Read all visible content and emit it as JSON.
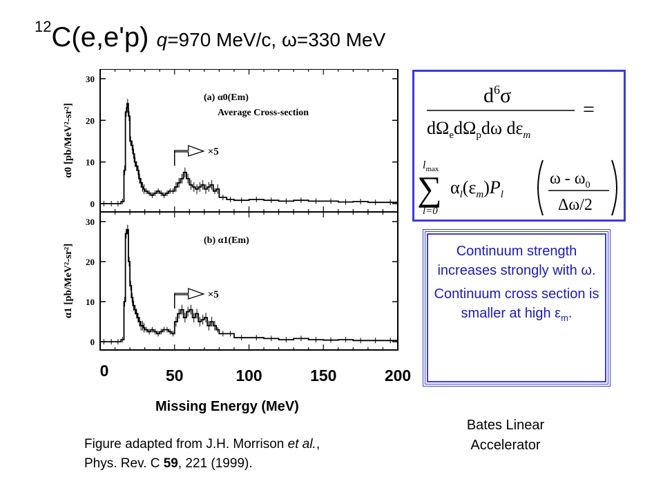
{
  "title": {
    "mass_number": "12",
    "reaction": "C(e,e'p)",
    "q_symbol": "q",
    "q_value": "=970 MeV/c, ",
    "omega_symbol": "ω",
    "omega_value": "=330 MeV"
  },
  "colors": {
    "box_border": "#3b3bd6",
    "box_text": "#1a1ab8"
  },
  "chart_data": {
    "type": "line",
    "xlabel": "Missing Energy (MeV)",
    "xlim": [
      0,
      200
    ],
    "x_ticks": [
      "0",
      "50",
      "100",
      "150",
      "200"
    ],
    "panels": [
      {
        "name": "a",
        "label": "(a)  α0(Em)",
        "sublabel": "Average Cross-section",
        "ylabel": "α0 [pb/MeV²-sr²]",
        "ylim": [
          0,
          30
        ],
        "y_ticks": [
          "0",
          "10",
          "20",
          "30"
        ],
        "scale_annotation": "×5",
        "scale_from_x": 50,
        "series": [
          {
            "x": [
              0,
              5,
              10,
              14,
              16,
              17,
              18,
              19,
              20,
              21,
              22,
              23,
              24,
              25,
              26,
              27,
              28,
              29,
              30,
              32,
              34,
              36,
              38,
              40,
              42,
              44,
              46,
              48,
              50,
              52,
              54,
              56,
              58,
              60,
              62,
              64,
              66,
              68,
              70,
              72,
              74,
              76,
              78,
              80,
              85,
              90,
              100,
              110,
              120,
              130,
              140,
              150,
              160,
              170,
              180,
              190,
              200
            ],
            "y": [
              0,
              0,
              0,
              0.5,
              8,
              22,
              24,
              21,
              15,
              14,
              12,
              10,
              9,
              8,
              6,
              5,
              4,
              3.5,
              3,
              2.5,
              2,
              2.5,
              3,
              2.5,
              2,
              2.5,
              3,
              3,
              4,
              5,
              6,
              7.5,
              6,
              4.5,
              4,
              3.5,
              4,
              4.5,
              3.5,
              4,
              4.5,
              3,
              3.5,
              1.5,
              1,
              0.8,
              1,
              0.8,
              0.6,
              0.8,
              0.6,
              0.6,
              0.4,
              0.5,
              0.3,
              0.3,
              0.3
            ]
          }
        ]
      },
      {
        "name": "b",
        "label": "(b)  α1(Em)",
        "ylabel": "α1 [pb/MeV²-sr²]",
        "ylim": [
          0,
          30
        ],
        "y_ticks": [
          "0",
          "10",
          "20",
          "30"
        ],
        "scale_annotation": "×5",
        "scale_from_x": 50,
        "series": [
          {
            "x": [
              0,
              5,
              10,
              14,
              16,
              17,
              18,
              19,
              20,
              21,
              22,
              23,
              24,
              25,
              26,
              27,
              28,
              29,
              30,
              32,
              34,
              36,
              38,
              40,
              42,
              44,
              46,
              48,
              50,
              52,
              54,
              56,
              58,
              60,
              62,
              64,
              66,
              68,
              70,
              72,
              74,
              76,
              78,
              80,
              85,
              90,
              100,
              110,
              120,
              130,
              140,
              150,
              160,
              170,
              180,
              190,
              200
            ],
            "y": [
              0,
              0,
              0,
              0.5,
              10,
              27,
              28,
              20,
              14,
              11,
              9,
              8,
              7,
              6,
              5,
              4,
              4,
              3.5,
              3,
              2.5,
              3,
              2.5,
              2,
              2.5,
              3,
              3,
              2.5,
              2,
              5,
              7,
              8,
              6,
              7.5,
              8,
              6,
              7,
              5,
              5.5,
              6,
              4,
              5,
              4,
              3,
              2,
              2,
              1,
              1,
              0.8,
              0.5,
              0.8,
              0.5,
              0.4,
              0.5,
              0.3,
              0.3,
              0.3,
              0.3
            ]
          }
        ]
      }
    ]
  },
  "formula": {
    "numerator_d": "d",
    "numerator_exp": "6",
    "numerator_sigma": "σ",
    "den_d1": "dΩ",
    "den_sub_e": "e",
    "den_d2": "dΩ",
    "den_sub_p": "p",
    "den_rest": "dω dε",
    "den_sub_m": "m",
    "equals": "=",
    "sum_upper": "l",
    "sum_upper_sub": "max",
    "sum_lower": "l=0",
    "alpha": "α",
    "alpha_sub": "l",
    "alpha_arg": "(ε",
    "alpha_arg_sub": "m",
    "alpha_arg_close": ")",
    "P": "P",
    "P_sub": "l",
    "frac_num": "ω - ω",
    "frac_num_sub": "0",
    "frac_den": "Δω/2"
  },
  "notes": {
    "line1": "Continuum strength increases strongly with ω.",
    "line2_prefix": "Continuum cross section is smaller at high ε",
    "line2_sub": "m",
    "line2_suffix": "."
  },
  "lab_name": "Bates Linear Accelerator",
  "caption": {
    "line1_prefix": "Figure adapted from J.H. Morrison ",
    "line1_italic": "et al.",
    "line1_suffix": ",",
    "line2_prefix": "Phys. Rev. C ",
    "line2_bold": "59",
    "line2_suffix": ", 221 (1999)."
  }
}
